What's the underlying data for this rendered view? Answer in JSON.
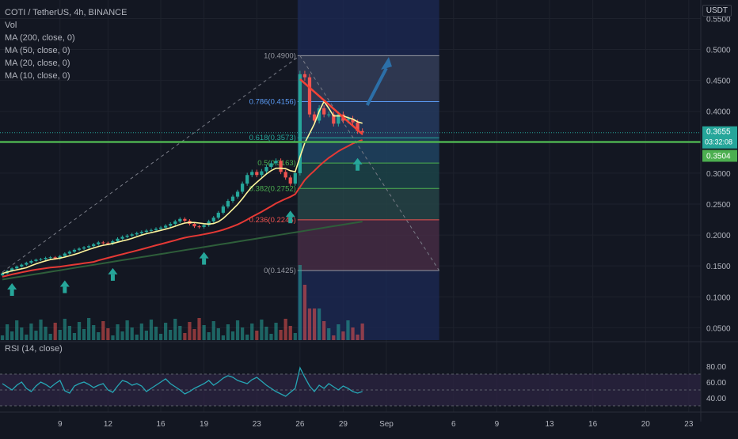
{
  "legend": {
    "symbol": "COTI / TetherUS, 4h, BINANCE",
    "vol": "Vol",
    "ma200": "MA (200, close, 0)",
    "ma50": "MA (50, close, 0)",
    "ma20": "MA (20, close, 0)",
    "ma10": "MA (10, close, 0)"
  },
  "currency": "USDT",
  "rsi_label": "RSI (14, close)",
  "colors": {
    "background": "#131722",
    "up": "#26a69a",
    "down": "#ef5350",
    "ma_yellow": "#fff59d",
    "ma_red": "#e53935",
    "ma_darkgreen": "#2e5e3a",
    "ma_purple": "#7e57c2",
    "support_line": "#4caf50",
    "arrow_teal": "#26a69a",
    "trend_red": "#f44336",
    "arrow_blue": "#2c6fa8"
  },
  "chart_data": {
    "type": "candlestick",
    "symbol": "COTI/USDT",
    "timeframe": "4h",
    "y_axis": {
      "min": 0.03,
      "max": 0.58,
      "ticks": [
        "0.5500",
        "0.5000",
        "0.4500",
        "0.4000",
        "0.3500",
        "0.3000",
        "0.2500",
        "0.2000",
        "0.1500",
        "0.1000",
        "0.0500"
      ],
      "tick_values": [
        0.55,
        0.5,
        0.45,
        0.4,
        0.35,
        0.3,
        0.25,
        0.2,
        0.15,
        0.1,
        0.05
      ]
    },
    "x_axis": {
      "labels": [
        "9",
        "12",
        "16",
        "19",
        "23",
        "26",
        "29",
        "Sep",
        "6",
        "9",
        "13",
        "16",
        "20",
        "23"
      ],
      "label_bar_index": [
        12,
        22,
        33,
        42,
        53,
        62,
        71,
        80,
        94,
        103,
        114,
        123,
        134,
        143
      ],
      "total_bars": 146
    },
    "current_price": {
      "price": "0.3655",
      "countdown": "03:32:08",
      "value": 0.3655
    },
    "ma_marker": {
      "price": "0.3504",
      "value": 0.3504
    },
    "support_level": 0.3504,
    "fibonacci": {
      "levels": [
        {
          "label": "1(0.4900)",
          "value": 0.49
        },
        {
          "label": "0.786(0.4156)",
          "value": 0.4156
        },
        {
          "label": "0.618(0.3573)",
          "value": 0.3573
        },
        {
          "label": "0.5(0.3163)",
          "value": 0.3163
        },
        {
          "label": "0.382(0.2752)",
          "value": 0.2752
        },
        {
          "label": "0.236(0.2245)",
          "value": 0.2245
        },
        {
          "label": "0(0.1425)",
          "value": 0.1425
        }
      ],
      "start_bar": 62,
      "end_bar": 91
    },
    "highlight_zone": {
      "start_bar": 62,
      "end_bar": 91
    },
    "arrows_up_bars": [
      2,
      13,
      23,
      42,
      60,
      74
    ],
    "projection_arrow": {
      "from_bar": 76,
      "from_value": 0.41,
      "to_bar": 80,
      "to_value": 0.48
    },
    "trendline_red": [
      {
        "bar": 62,
        "value": 0.452
      },
      {
        "bar": 75,
        "value": 0.363
      }
    ],
    "dashed_rise": [
      {
        "bar": 0,
        "value": 0.14
      },
      {
        "bar": 62,
        "value": 0.49
      }
    ],
    "dashed_fall": [
      {
        "bar": 62,
        "value": 0.49
      },
      {
        "bar": 91,
        "value": 0.1425
      }
    ],
    "closes": [
      0.138,
      0.142,
      0.146,
      0.149,
      0.152,
      0.155,
      0.158,
      0.16,
      0.161,
      0.163,
      0.164,
      0.162,
      0.166,
      0.17,
      0.173,
      0.176,
      0.178,
      0.18,
      0.182,
      0.185,
      0.188,
      0.187,
      0.186,
      0.19,
      0.194,
      0.197,
      0.199,
      0.201,
      0.203,
      0.205,
      0.207,
      0.208,
      0.21,
      0.212,
      0.215,
      0.218,
      0.222,
      0.226,
      0.223,
      0.218,
      0.214,
      0.213,
      0.216,
      0.222,
      0.228,
      0.236,
      0.246,
      0.255,
      0.262,
      0.27,
      0.283,
      0.297,
      0.302,
      0.297,
      0.303,
      0.31,
      0.316,
      0.32,
      0.302,
      0.293,
      0.283,
      0.3,
      0.46,
      0.455,
      0.395,
      0.385,
      0.405,
      0.395,
      0.395,
      0.38,
      0.395,
      0.385,
      0.388,
      0.382,
      0.368,
      0.366
    ],
    "rsi": {
      "ticks": [
        "80.00",
        "60.00",
        "40.00"
      ],
      "tick_values": [
        80,
        60,
        40
      ],
      "min": 26,
      "max": 88,
      "band_high": 70,
      "band_low": 30,
      "values": [
        58,
        54,
        50,
        56,
        60,
        52,
        48,
        55,
        60,
        57,
        53,
        58,
        62,
        49,
        46,
        55,
        58,
        60,
        57,
        53,
        56,
        58,
        50,
        47,
        55,
        62,
        60,
        56,
        58,
        55,
        48,
        52,
        56,
        60,
        64,
        58,
        54,
        50,
        45,
        48,
        52,
        55,
        58,
        62,
        56,
        60,
        65,
        68,
        66,
        62,
        60,
        58,
        63,
        66,
        61,
        56,
        52,
        48,
        45,
        42,
        47,
        52,
        78,
        66,
        55,
        48,
        56,
        52,
        58,
        54,
        50,
        55,
        52,
        48,
        46,
        48
      ]
    }
  }
}
